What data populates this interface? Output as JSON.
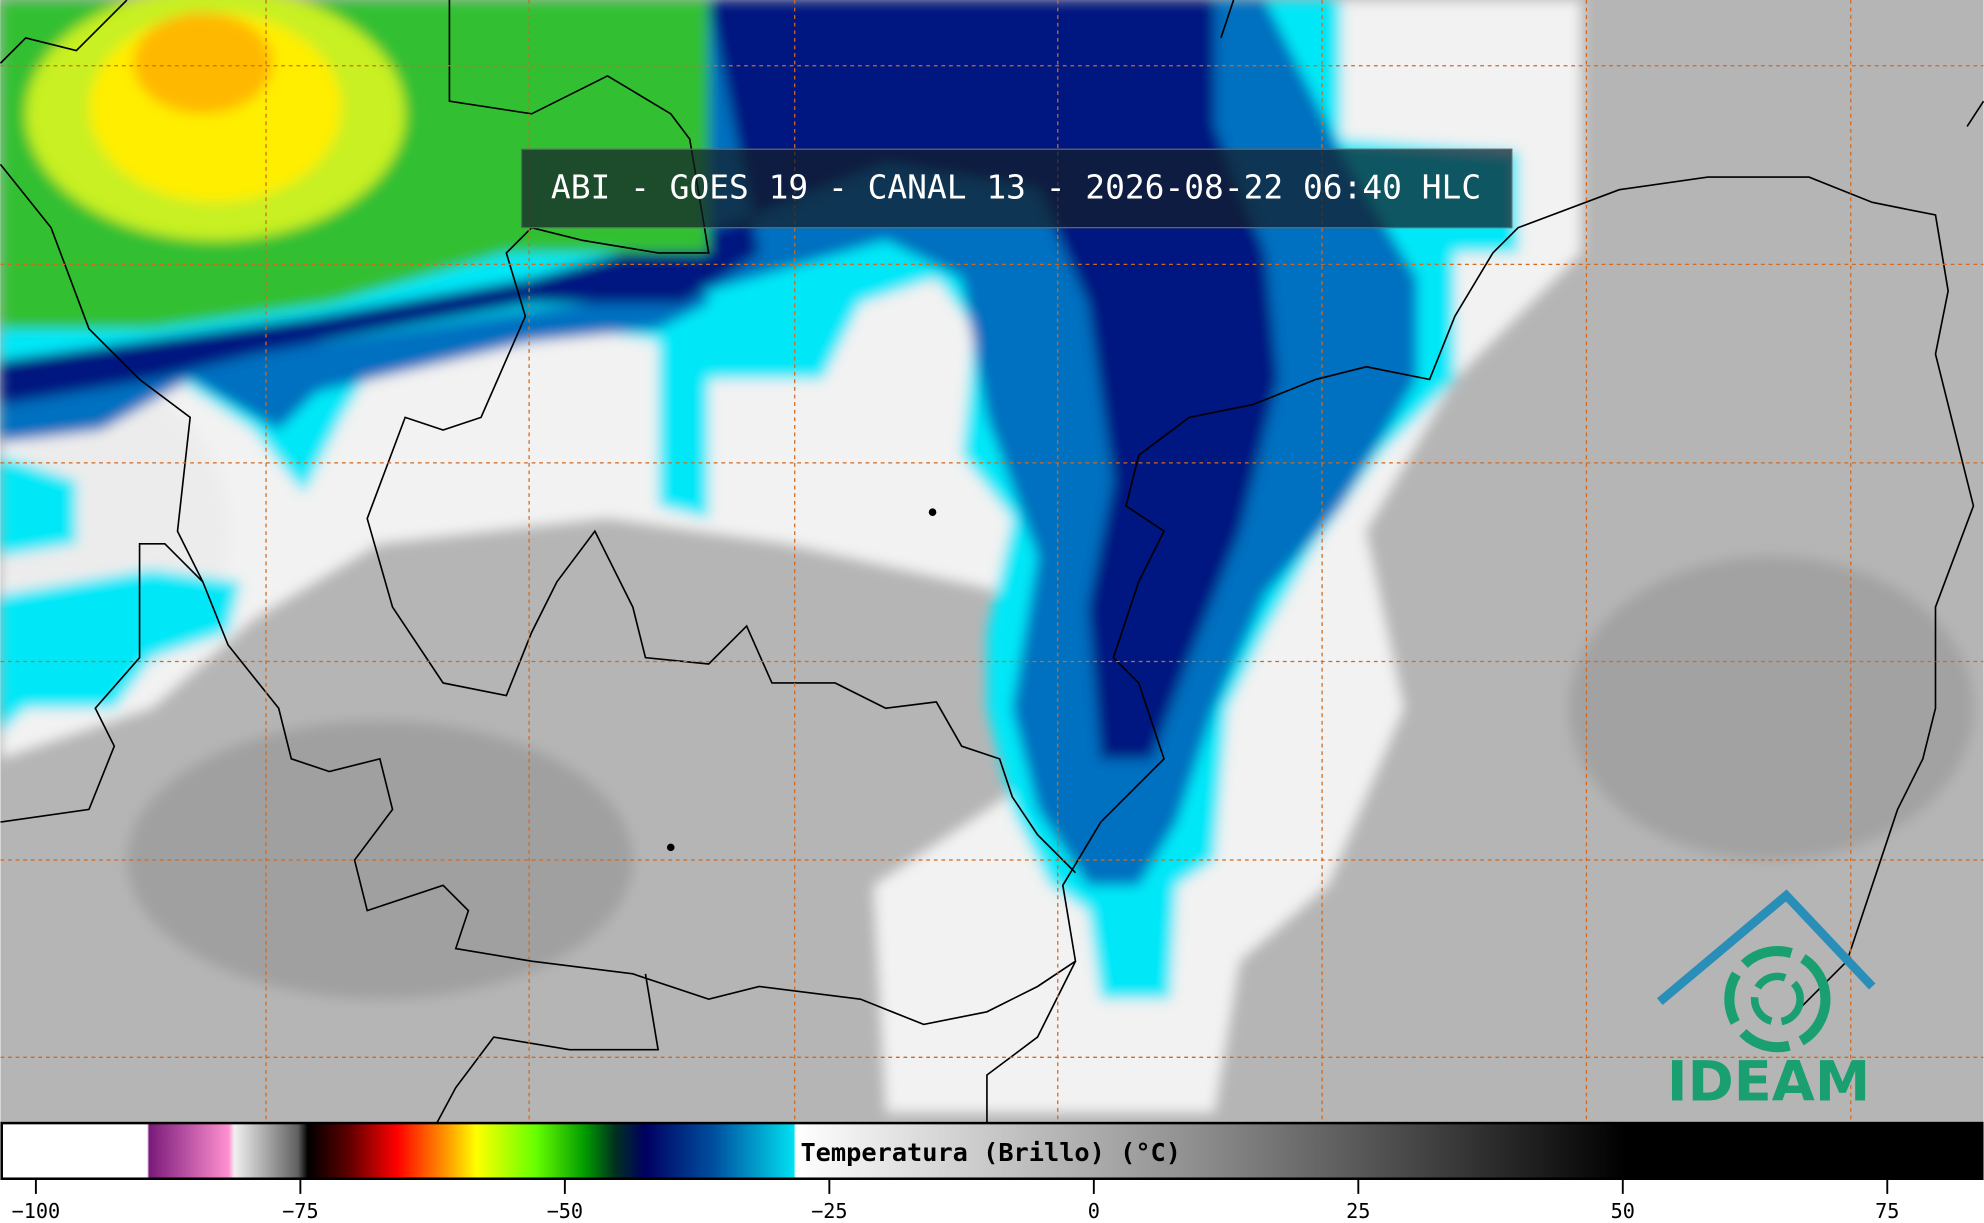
{
  "title": "ABI - GOES 19 - CANAL 13 - 2026-08-22 06:40 HLC",
  "colorbar": {
    "label": "Temperatura (Brillo) (°C)",
    "range": [
      -103.35,
      84.1
    ],
    "ticks": [
      {
        "value": -100,
        "label": "−100"
      },
      {
        "value": -75,
        "label": "−75"
      },
      {
        "value": -50,
        "label": "−50"
      },
      {
        "value": -25,
        "label": "−25"
      },
      0,
      25,
      50,
      75
    ]
  },
  "logo": {
    "text": "IDEAM"
  }
}
